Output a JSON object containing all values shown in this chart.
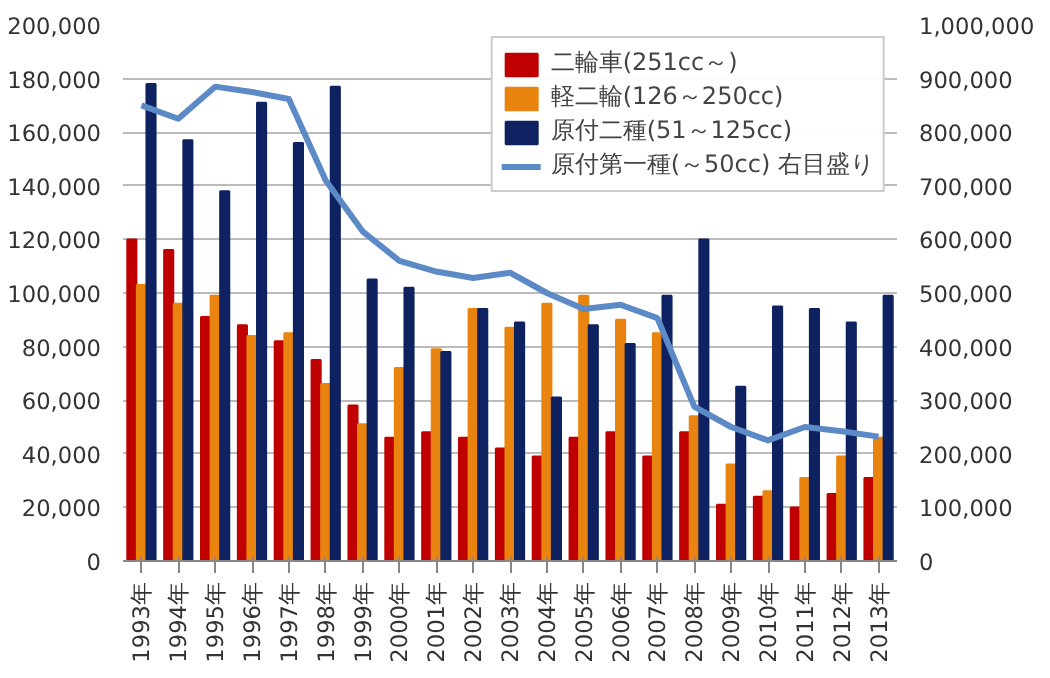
{
  "chart_data": {
    "type": "bar",
    "categories": [
      "1993年",
      "1994年",
      "1995年",
      "1996年",
      "1997年",
      "1998年",
      "1999年",
      "2000年",
      "2001年",
      "2002年",
      "2003年",
      "2004年",
      "2005年",
      "2006年",
      "2007年",
      "2008年",
      "2009年",
      "2010年",
      "2011年",
      "2012年",
      "2013年"
    ],
    "series": [
      {
        "name": "二輪車(251cc～)",
        "color": "#c00000",
        "values": [
          120000,
          116000,
          91000,
          88000,
          82000,
          75000,
          58000,
          46000,
          48000,
          46000,
          42000,
          39000,
          46000,
          48000,
          39000,
          48000,
          21000,
          24000,
          20000,
          25000,
          31000
        ]
      },
      {
        "name": "軽二輪(126～250cc)",
        "color": "#e8840f",
        "values": [
          103000,
          96000,
          99000,
          84000,
          85000,
          66000,
          51000,
          72000,
          79000,
          94000,
          87000,
          96000,
          99000,
          90000,
          85000,
          54000,
          36000,
          26000,
          31000,
          39000,
          46000
        ]
      },
      {
        "name": "原付二種(51～125cc)",
        "color": "#0e2160",
        "values": [
          178000,
          157000,
          138000,
          171000,
          156000,
          177000,
          105000,
          102000,
          78000,
          94000,
          89000,
          61000,
          88000,
          81000,
          99000,
          120000,
          65000,
          95000,
          94000,
          89000,
          99000
        ]
      },
      {
        "name": "原付第一種(～50cc) 右目盛り",
        "color": "#5b8ac6",
        "type": "line",
        "axis": "y2",
        "values": [
          850000,
          825000,
          885000,
          875000,
          862000,
          710000,
          615000,
          560000,
          540000,
          528000,
          538000,
          500000,
          470000,
          478000,
          453000,
          288000,
          250000,
          225000,
          250000,
          242000,
          232000
        ]
      }
    ],
    "ylim": [
      0,
      200000
    ],
    "yticks": [
      {
        "value": 0,
        "label": "0"
      },
      {
        "value": 20000,
        "label": "20,000"
      },
      {
        "value": 40000,
        "label": "40,000"
      },
      {
        "value": 60000,
        "label": "60,000"
      },
      {
        "value": 80000,
        "label": "80,000"
      },
      {
        "value": 100000,
        "label": "100,000"
      },
      {
        "value": 120000,
        "label": "120,000"
      },
      {
        "value": 140000,
        "label": "140,000"
      },
      {
        "value": 160000,
        "label": "160,000"
      },
      {
        "value": 180000,
        "label": "180,000"
      },
      {
        "value": 200000,
        "label": "200,000"
      }
    ],
    "y2lim": [
      0,
      1000000
    ],
    "y2ticks": [
      {
        "value": 0,
        "label": "0"
      },
      {
        "value": 100000,
        "label": "100,000"
      },
      {
        "value": 200000,
        "label": "200,000"
      },
      {
        "value": 300000,
        "label": "300,000"
      },
      {
        "value": 400000,
        "label": "400,000"
      },
      {
        "value": 500000,
        "label": "500,000"
      },
      {
        "value": 600000,
        "label": "600,000"
      },
      {
        "value": 700000,
        "label": "700,000"
      },
      {
        "value": 800000,
        "label": "800,000"
      },
      {
        "value": 900000,
        "label": "900,000"
      },
      {
        "value": 1000000,
        "label": "1,000,000"
      }
    ],
    "grid": "y",
    "legend": "top right"
  }
}
